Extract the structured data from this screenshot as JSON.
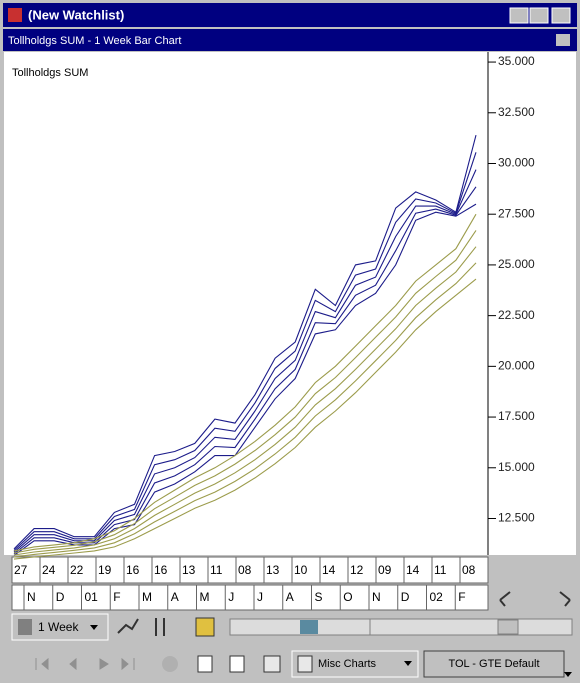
{
  "window": {
    "title": "(New Watchlist)"
  },
  "chart_data": {
    "type": "line",
    "title": "Tollholdgs  SUM - 1 Week Bar Chart",
    "label": "Tollholdgs  SUM",
    "ylim": [
      10.7,
      35.2
    ],
    "yticks": [
      {
        "value": 12.5,
        "label": "12.500"
      },
      {
        "value": 15,
        "label": "15.000"
      },
      {
        "value": 17.5,
        "label": "17.500"
      },
      {
        "value": 20,
        "label": "20.000"
      },
      {
        "value": 22.5,
        "label": "22.500"
      },
      {
        "value": 25,
        "label": "25.000"
      },
      {
        "value": 27.5,
        "label": "27.500"
      },
      {
        "value": 30,
        "label": "30.000"
      },
      {
        "value": 32.5,
        "label": "32.500"
      },
      {
        "value": 35,
        "label": "35.000"
      }
    ],
    "grid": false,
    "series": [
      {
        "color": "#1c1c8a",
        "values": [
          11.0,
          12.0,
          12.0,
          11.6,
          11.6,
          12.8,
          13.2,
          15.6,
          15.8,
          16.2,
          17.4,
          17.2,
          18.6,
          20.4,
          21.2,
          23.8,
          23.0,
          25.0,
          25.2,
          27.8,
          28.6,
          28.2,
          27.6,
          31.4
        ]
      },
      {
        "color": "#1c1c8a",
        "values": [
          10.92,
          11.85,
          11.85,
          11.5,
          11.5,
          12.6,
          12.95,
          15.15,
          15.4,
          15.85,
          16.95,
          16.8,
          18.2,
          19.9,
          20.75,
          23.25,
          22.7,
          24.5,
          24.8,
          27.1,
          28.25,
          28.05,
          27.55,
          30.55
        ]
      },
      {
        "color": "#1c1c8a",
        "values": [
          10.84,
          11.7,
          11.7,
          11.4,
          11.4,
          12.4,
          12.7,
          14.7,
          15.0,
          15.5,
          16.5,
          16.4,
          17.8,
          19.4,
          20.3,
          22.7,
          22.4,
          24.0,
          24.4,
          26.4,
          27.9,
          27.9,
          27.5,
          29.7
        ]
      },
      {
        "color": "#1c1c8a",
        "values": [
          10.76,
          11.55,
          11.55,
          11.3,
          11.3,
          12.2,
          12.45,
          14.25,
          14.6,
          15.15,
          16.05,
          16.0,
          17.4,
          18.9,
          19.85,
          22.15,
          22.1,
          23.5,
          24.0,
          25.7,
          27.55,
          27.75,
          27.45,
          28.85
        ]
      },
      {
        "color": "#1c1c8a",
        "values": [
          10.68,
          11.4,
          11.4,
          11.2,
          11.2,
          12.0,
          12.2,
          13.8,
          14.2,
          14.8,
          15.6,
          15.6,
          17.0,
          18.4,
          19.4,
          21.6,
          21.8,
          23.0,
          23.6,
          25.0,
          27.2,
          27.6,
          27.4,
          28.0
        ]
      },
      {
        "color": "#9c9c4c",
        "values": [
          10.9,
          11.1,
          11.2,
          11.3,
          11.5,
          11.9,
          12.5,
          13.3,
          13.9,
          14.5,
          15.0,
          15.6,
          16.3,
          17.1,
          18.0,
          19.2,
          20.0,
          21.0,
          22.0,
          23.0,
          24.2,
          25.0,
          25.8,
          27.5
        ]
      },
      {
        "color": "#9c9c4c",
        "values": [
          10.8,
          10.98,
          11.08,
          11.18,
          11.35,
          11.7,
          12.25,
          12.98,
          13.55,
          14.13,
          14.6,
          15.18,
          15.85,
          16.63,
          17.5,
          18.65,
          19.45,
          20.43,
          21.43,
          22.43,
          23.6,
          24.43,
          25.23,
          26.7
        ]
      },
      {
        "color": "#9c9c4c",
        "values": [
          10.7,
          10.85,
          10.95,
          11.05,
          11.2,
          11.5,
          12.0,
          12.65,
          13.2,
          13.75,
          14.2,
          14.75,
          15.4,
          16.15,
          17.0,
          18.1,
          18.9,
          19.85,
          20.85,
          21.85,
          23.0,
          23.85,
          24.65,
          25.9
        ]
      },
      {
        "color": "#9c9c4c",
        "values": [
          10.6,
          10.73,
          10.83,
          10.93,
          11.05,
          11.3,
          11.75,
          12.33,
          12.85,
          13.38,
          13.8,
          14.33,
          14.95,
          15.68,
          16.5,
          17.55,
          18.35,
          19.28,
          20.28,
          21.28,
          22.4,
          23.28,
          24.08,
          25.1
        ]
      },
      {
        "color": "#9c9c4c",
        "values": [
          10.5,
          10.6,
          10.7,
          10.8,
          10.9,
          11.1,
          11.5,
          12.0,
          12.5,
          13.0,
          13.4,
          13.9,
          14.5,
          15.2,
          16.0,
          17.0,
          17.8,
          18.7,
          19.7,
          20.7,
          21.8,
          22.7,
          23.5,
          24.3
        ]
      }
    ]
  },
  "date_axis": {
    "weeks": [
      "27",
      "24",
      "22",
      "19",
      "16",
      "16",
      "13",
      "11",
      "08",
      "13",
      "10",
      "14",
      "12",
      "09",
      "14",
      "11",
      "08"
    ],
    "months": [
      "N",
      "D",
      "01",
      "F",
      "M",
      "A",
      "M",
      "J",
      "J",
      "A",
      "S",
      "O",
      "N",
      "D",
      "02",
      "F"
    ]
  },
  "toolbar": {
    "period": "1 Week",
    "misc": "Misc Charts",
    "layout": "TOL - GTE Default"
  }
}
